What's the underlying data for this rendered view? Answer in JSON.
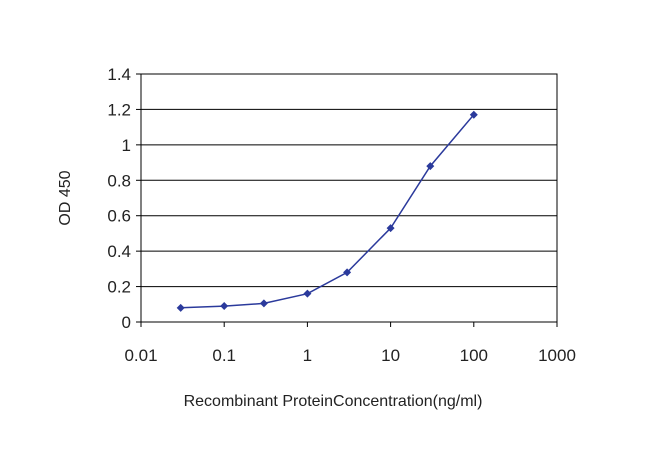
{
  "chart_data": {
    "type": "line",
    "xlabel": "Recombinant ProteinConcentration(ng/ml)",
    "ylabel": "OD 450",
    "xscale": "log",
    "xlim": [
      0.01,
      1000
    ],
    "ylim": [
      0,
      1.4
    ],
    "xticks": [
      "0.01",
      "0.1",
      "1",
      "10",
      "100",
      "1000"
    ],
    "yticks": [
      "0",
      "0.2",
      "0.4",
      "0.6",
      "0.8",
      "1",
      "1.2",
      "1.4"
    ],
    "grid": "horizontal",
    "series": [
      {
        "color": "#2b3a9c",
        "marker": "diamond",
        "x": [
          0.03,
          0.1,
          0.3,
          1,
          3,
          10,
          30,
          100
        ],
        "y": [
          0.08,
          0.09,
          0.105,
          0.16,
          0.28,
          0.53,
          0.88,
          1.17
        ]
      }
    ]
  }
}
